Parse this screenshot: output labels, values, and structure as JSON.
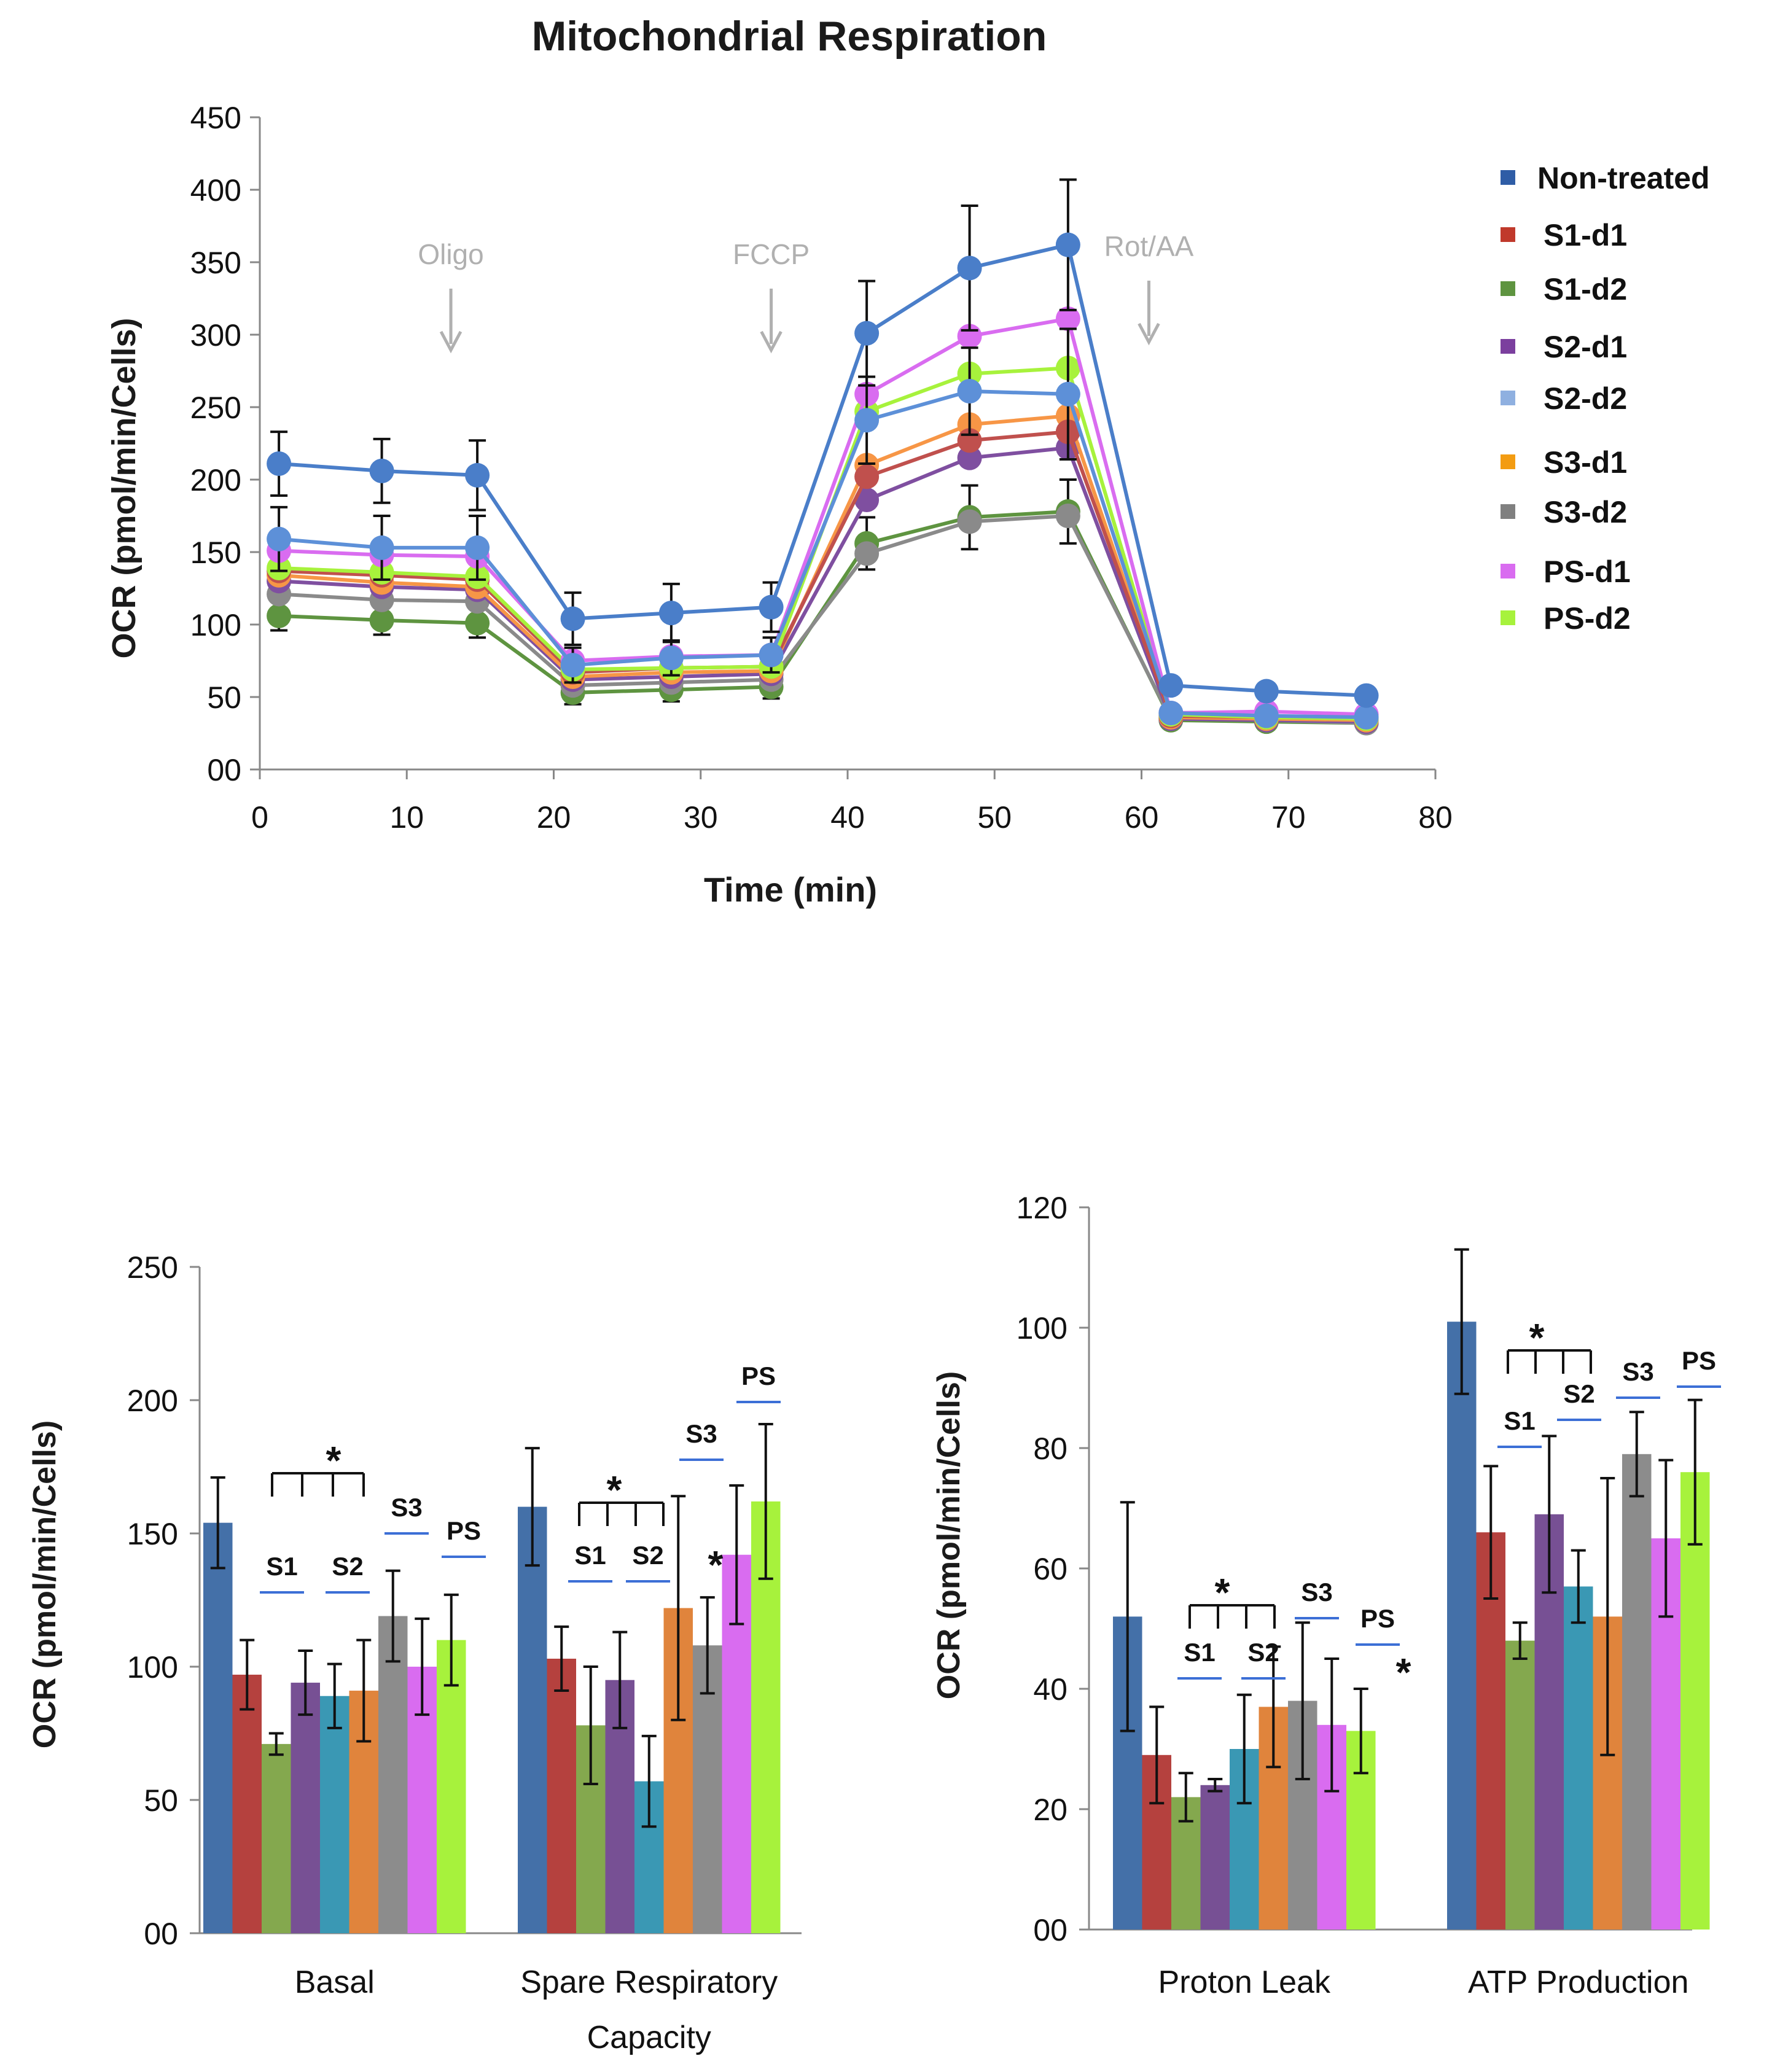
{
  "chart_data": [
    {
      "type": "line",
      "title": "Mitochondrial Respiration",
      "xlabel": "Time (min)",
      "ylabel": "OCR (pmol/min/Cells)",
      "xlim": [
        0,
        80
      ],
      "ylim": [
        0,
        450
      ],
      "xticks": [
        0,
        10,
        20,
        30,
        40,
        50,
        60,
        70,
        80
      ],
      "yticks": [
        "00",
        "50",
        "100",
        "150",
        "200",
        "250",
        "300",
        "350",
        "400",
        "450"
      ],
      "x": [
        1.3,
        8.3,
        14.8,
        21.3,
        28.0,
        34.8,
        41.3,
        48.3,
        55.0,
        62.0,
        68.5,
        75.3
      ],
      "annotations": [
        {
          "label": "Oligo",
          "x": 13
        },
        {
          "label": "FCCP",
          "x": 34.8
        },
        {
          "label": "Rot/AA",
          "x": 60.5
        }
      ],
      "legend_position": "right",
      "series": [
        {
          "name": "Non-treated",
          "color": "#4a7ec9",
          "values": [
            211,
            206,
            203,
            104,
            108,
            112,
            301,
            346,
            362,
            58,
            54,
            51
          ],
          "errors": [
            22,
            22,
            24,
            18,
            20,
            17,
            36,
            43,
            45,
            0,
            0,
            0
          ]
        },
        {
          "name": "S2-d2",
          "color": "#5d90d8",
          "values": [
            159,
            153,
            153,
            72,
            77,
            79,
            241,
            261,
            259,
            39,
            37,
            36
          ],
          "errors": [
            22,
            22,
            22,
            12,
            12,
            12,
            30,
            30,
            45,
            0,
            0,
            0
          ]
        },
        {
          "name": "PS-d1",
          "color": "#d96cf0",
          "values": [
            151,
            148,
            147,
            75,
            78,
            79,
            259,
            299,
            311,
            39,
            40,
            38
          ],
          "errors": [
            0,
            0,
            0,
            0,
            0,
            0,
            0,
            0,
            0,
            0,
            0,
            0
          ]
        },
        {
          "name": "PS-d2",
          "color": "#a7f23c",
          "values": [
            139,
            136,
            133,
            69,
            70,
            71,
            247,
            273,
            277,
            38,
            36,
            35
          ],
          "errors": [
            0,
            0,
            0,
            0,
            0,
            0,
            0,
            0,
            0,
            0,
            0,
            0
          ]
        },
        {
          "name": "S1-d1",
          "color": "#c0504d",
          "values": [
            137,
            134,
            131,
            67,
            70,
            71,
            202,
            227,
            233,
            37,
            36,
            35
          ],
          "errors": [
            0,
            0,
            0,
            0,
            0,
            0,
            0,
            0,
            0,
            0,
            0,
            0
          ]
        },
        {
          "name": "S3-d1",
          "color": "#f79646",
          "values": [
            134,
            129,
            126,
            64,
            67,
            68,
            210,
            238,
            244,
            36,
            35,
            34
          ],
          "errors": [
            0,
            0,
            0,
            0,
            0,
            0,
            0,
            0,
            0,
            0,
            0,
            0
          ]
        },
        {
          "name": "S2-d1",
          "color": "#7f4fa0",
          "values": [
            130,
            126,
            124,
            62,
            64,
            66,
            186,
            215,
            222,
            35,
            34,
            33
          ],
          "errors": [
            0,
            0,
            0,
            0,
            0,
            0,
            0,
            0,
            0,
            0,
            0,
            0
          ]
        },
        {
          "name": "S3-d2",
          "color": "#8a8a8a",
          "values": [
            121,
            117,
            116,
            58,
            60,
            62,
            149,
            171,
            175,
            35,
            34,
            32
          ],
          "errors": [
            0,
            0,
            0,
            0,
            0,
            0,
            0,
            0,
            0,
            0,
            0,
            0
          ]
        },
        {
          "name": "S1-d2",
          "color": "#5e9440",
          "values": [
            106,
            103,
            101,
            53,
            55,
            57,
            156,
            174,
            178,
            34,
            33,
            32
          ],
          "errors": [
            10,
            10,
            10,
            8,
            8,
            8,
            18,
            22,
            22,
            0,
            0,
            0
          ]
        }
      ],
      "legend": [
        {
          "name": "Non-treated",
          "color": "#2f5da6"
        },
        {
          "name": "S1-d1",
          "color": "#c0392b"
        },
        {
          "name": "S1-d2",
          "color": "#5e9440"
        },
        {
          "name": "S2-d1",
          "color": "#7b3f9e"
        },
        {
          "name": "S2-d2",
          "color": "#8fb0e0"
        },
        {
          "name": "S3-d1",
          "color": "#f39c12"
        },
        {
          "name": "S3-d2",
          "color": "#808080"
        },
        {
          "name": "PS-d1",
          "color": "#d96cf0"
        },
        {
          "name": "PS-d2",
          "color": "#a7f23c"
        }
      ]
    },
    {
      "type": "bar",
      "xlabel": "",
      "ylabel": "OCR (pmol/min/Cells)",
      "ylim": [
        0,
        250
      ],
      "yticks": [
        "00",
        "50",
        "100",
        "150",
        "200",
        "250"
      ],
      "categories": [
        "Basal",
        "Spare Respiratory Capacity"
      ],
      "category_lines": [
        [
          "Basal"
        ],
        [
          "Spare Respiratory",
          "Capacity"
        ]
      ],
      "series": [
        {
          "name": "Non-treated",
          "color": "#4470a8",
          "values": [
            154,
            160
          ],
          "errors": [
            17,
            22
          ]
        },
        {
          "name": "S1-d1",
          "color": "#b5413e",
          "values": [
            97,
            103
          ],
          "errors": [
            13,
            12
          ]
        },
        {
          "name": "S1-d2",
          "color": "#84a84e",
          "values": [
            71,
            78
          ],
          "errors": [
            4,
            22
          ]
        },
        {
          "name": "S2-d1",
          "color": "#775094",
          "values": [
            94,
            95
          ],
          "errors": [
            12,
            18
          ]
        },
        {
          "name": "S2-d2",
          "color": "#3a98b4",
          "values": [
            89,
            57
          ],
          "errors": [
            12,
            17
          ]
        },
        {
          "name": "S3-d1",
          "color": "#e0843c",
          "values": [
            91,
            122
          ],
          "errors": [
            19,
            42
          ]
        },
        {
          "name": "S3-d2",
          "color": "#8c8c8c",
          "values": [
            119,
            108
          ],
          "errors": [
            17,
            18
          ]
        },
        {
          "name": "PS-d1",
          "color": "#d96cf0",
          "values": [
            100,
            142
          ],
          "errors": [
            18,
            26
          ]
        },
        {
          "name": "PS-d2",
          "color": "#a7f23c",
          "values": [
            110,
            162
          ],
          "errors": [
            17,
            29
          ]
        }
      ],
      "group_labels": [
        "S1",
        "S2",
        "S3",
        "PS",
        "S1",
        "S2",
        "S3",
        "PS"
      ],
      "significance": [
        "*",
        "*",
        "*"
      ]
    },
    {
      "type": "bar",
      "xlabel": "",
      "ylabel": "OCR (pmol/min/Cells)",
      "ylim": [
        0,
        120
      ],
      "yticks": [
        "00",
        "20",
        "40",
        "60",
        "80",
        "100",
        "120"
      ],
      "categories": [
        "Proton Leak",
        "ATP Production"
      ],
      "category_lines": [
        [
          "Proton Leak"
        ],
        [
          "ATP Production"
        ]
      ],
      "series": [
        {
          "name": "Non-treated",
          "color": "#4470a8",
          "values": [
            52,
            101
          ],
          "errors": [
            19,
            12
          ]
        },
        {
          "name": "S1-d1",
          "color": "#b5413e",
          "values": [
            29,
            66
          ],
          "errors": [
            8,
            11
          ]
        },
        {
          "name": "S1-d2",
          "color": "#84a84e",
          "values": [
            22,
            48
          ],
          "errors": [
            4,
            3
          ]
        },
        {
          "name": "S2-d1",
          "color": "#775094",
          "values": [
            24,
            69
          ],
          "errors": [
            1,
            13
          ]
        },
        {
          "name": "S2-d2",
          "color": "#3a98b4",
          "values": [
            30,
            57
          ],
          "errors": [
            9,
            6
          ]
        },
        {
          "name": "S3-d1",
          "color": "#e0843c",
          "values": [
            37,
            52
          ],
          "errors": [
            10,
            23
          ]
        },
        {
          "name": "S3-d2",
          "color": "#8c8c8c",
          "values": [
            38,
            79
          ],
          "errors": [
            13,
            7
          ]
        },
        {
          "name": "PS-d1",
          "color": "#d96cf0",
          "values": [
            34,
            65
          ],
          "errors": [
            11,
            13
          ]
        },
        {
          "name": "PS-d2",
          "color": "#a7f23c",
          "values": [
            33,
            76
          ],
          "errors": [
            7,
            12
          ]
        }
      ],
      "group_labels": [
        "S1",
        "S2",
        "S3",
        "PS",
        "S1",
        "S2",
        "S3",
        "PS"
      ],
      "significance": [
        "*",
        "*",
        "*"
      ]
    }
  ]
}
